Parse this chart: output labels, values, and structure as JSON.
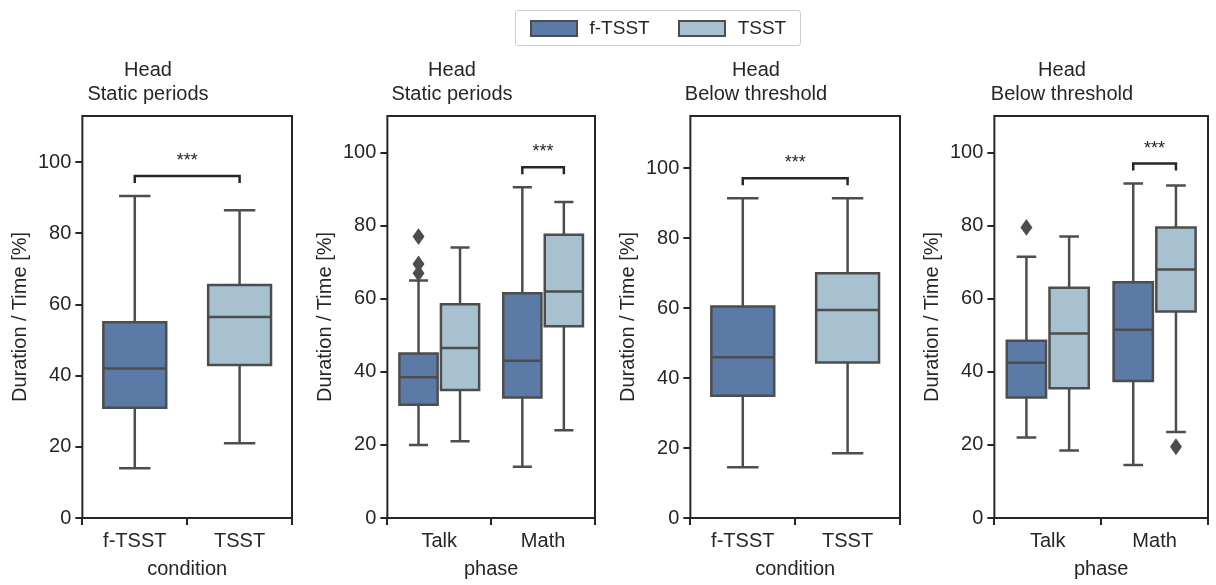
{
  "chart_data": [
    {
      "type": "box",
      "title": "Head\nStatic periods",
      "xlabel": "condition",
      "ylabel": "Duration / Time [%]",
      "categories": [
        "f-TSST",
        "TSST"
      ],
      "colors": [
        "#5b7ba6",
        "#a7c1d1"
      ],
      "ylim": [
        0,
        113
      ],
      "yticks": [
        0,
        20,
        40,
        60,
        80,
        100
      ],
      "boxes": [
        {
          "low": 14,
          "q1": 31,
          "median": 42,
          "q3": 55,
          "high": 90.5
        },
        {
          "low": 21,
          "q1": 43,
          "median": 56.5,
          "q3": 65.5,
          "high": 86.5
        }
      ],
      "annotations": [
        "***"
      ]
    },
    {
      "type": "box",
      "title": "Head\nStatic periods",
      "xlabel": "phase",
      "ylabel": "Duration / Time [%]",
      "categories": [
        "Talk",
        "Math"
      ],
      "ylim": [
        0,
        110
      ],
      "yticks": [
        0,
        20,
        40,
        60,
        80,
        100
      ],
      "legend": "top",
      "marker": "diamond",
      "series": [
        {
          "name": "f-TSST",
          "color": "#5b7ba6",
          "boxes": [
            {
              "low": 20,
              "q1": 31,
              "median": 38.5,
              "q3": 45,
              "high": 65,
              "outliers": [
                67,
                69.5,
                77
              ]
            },
            {
              "low": 14,
              "q1": 33,
              "median": 43,
              "q3": 61.5,
              "high": 90.5
            }
          ]
        },
        {
          "name": "TSST",
          "color": "#a7c1d1",
          "boxes": [
            {
              "low": 21,
              "q1": 35,
              "median": 46.5,
              "q3": 58.5,
              "high": 74
            },
            {
              "low": 24,
              "q1": 52.5,
              "median": 62,
              "q3": 77.5,
              "high": 86.5
            }
          ]
        }
      ],
      "annotations": [
        "***"
      ]
    },
    {
      "type": "box",
      "title": "Head\nBelow threshold",
      "xlabel": "condition",
      "ylabel": "Duration / Time [%]",
      "categories": [
        "f-TSST",
        "TSST"
      ],
      "colors": [
        "#5b7ba6",
        "#a7c1d1"
      ],
      "ylim": [
        0,
        115
      ],
      "yticks": [
        0,
        20,
        40,
        60,
        80,
        100
      ],
      "boxes": [
        {
          "low": 14.5,
          "q1": 35,
          "median": 46,
          "q3": 60.5,
          "high": 91.5
        },
        {
          "low": 18.5,
          "q1": 44.5,
          "median": 59.5,
          "q3": 70,
          "high": 91.5
        }
      ],
      "annotations": [
        "***"
      ]
    },
    {
      "type": "box",
      "title": "Head\nBelow threshold",
      "xlabel": "phase",
      "ylabel": "Duration / Time [%]",
      "categories": [
        "Talk",
        "Math"
      ],
      "ylim": [
        0,
        110
      ],
      "yticks": [
        0,
        20,
        40,
        60,
        80,
        100
      ],
      "marker": "diamond",
      "series": [
        {
          "color": "#5b7ba6",
          "boxes": [
            {
              "low": 22,
              "q1": 33,
              "median": 42.5,
              "q3": 48.5,
              "high": 71.5,
              "outliers": [
                79.5
              ]
            },
            {
              "low": 14.5,
              "q1": 37.5,
              "median": 51.5,
              "q3": 64.5,
              "high": 91.5
            }
          ]
        },
        {
          "color": "#a7c1d1",
          "boxes": [
            {
              "low": 18.5,
              "q1": 35.5,
              "median": 50.5,
              "q3": 63,
              "high": 77
            },
            {
              "low": 23.5,
              "q1": 56.5,
              "median": 68,
              "q3": 79.5,
              "high": 91,
              "outliers": [
                19.5
              ]
            }
          ]
        }
      ],
      "annotations": [
        "***"
      ]
    }
  ]
}
